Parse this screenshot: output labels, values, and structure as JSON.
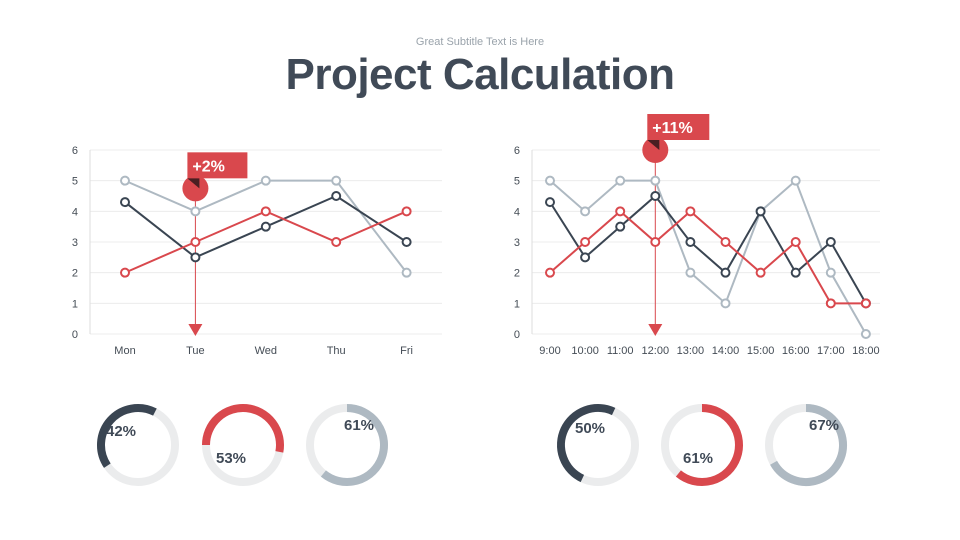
{
  "header": {
    "subtitle": "Great Subtitle Text is Here",
    "title": "Project Calculation"
  },
  "colors": {
    "dark": "#3a4552",
    "red": "#d9484d",
    "gray": "#aeb9c2",
    "track": "#ebeced",
    "grid": "#ececec"
  },
  "chart_data": [
    {
      "type": "line",
      "title": "",
      "categories": [
        "Mon",
        "Tue",
        "Wed",
        "Thu",
        "Fri"
      ],
      "ylim": [
        0,
        6
      ],
      "yticks": [
        "0",
        "1",
        "2",
        "3",
        "4",
        "5",
        "6"
      ],
      "series": [
        {
          "name": "gray",
          "color": "#aeb9c2",
          "values": [
            5,
            4,
            5,
            5,
            2
          ]
        },
        {
          "name": "dark",
          "color": "#3a4552",
          "values": [
            4.3,
            2.5,
            3.5,
            4.5,
            3
          ]
        },
        {
          "name": "red",
          "color": "#d9484d",
          "values": [
            2,
            3,
            4,
            3,
            4
          ]
        }
      ],
      "marker": {
        "category": "Tue",
        "value": 4.75,
        "label": "+2%"
      }
    },
    {
      "type": "line",
      "title": "",
      "categories": [
        "9:00",
        "10:00",
        "11:00",
        "12:00",
        "13:00",
        "14:00",
        "15:00",
        "16:00",
        "17:00",
        "18:00"
      ],
      "ylim": [
        0,
        6
      ],
      "yticks": [
        "0",
        "1",
        "2",
        "3",
        "4",
        "5",
        "6"
      ],
      "series": [
        {
          "name": "gray",
          "color": "#aeb9c2",
          "values": [
            5,
            4,
            5,
            5,
            2,
            1,
            4,
            5,
            2,
            0
          ]
        },
        {
          "name": "dark",
          "color": "#3a4552",
          "values": [
            4.3,
            2.5,
            3.5,
            4.5,
            3,
            2,
            4,
            2,
            3,
            1
          ]
        },
        {
          "name": "red",
          "color": "#d9484d",
          "values": [
            2,
            3,
            4,
            3,
            4,
            3,
            2,
            3,
            1,
            1
          ]
        }
      ],
      "marker": {
        "category": "12:00",
        "value": 6,
        "label": "+11%"
      }
    }
  ],
  "donuts": [
    {
      "value": 42,
      "label": "42%",
      "color": "#3a4552"
    },
    {
      "value": 53,
      "label": "53%",
      "color": "#d9484d"
    },
    {
      "value": 61,
      "label": "61%",
      "color": "#aeb9c2"
    },
    {
      "value": 50,
      "label": "50%",
      "color": "#3a4552"
    },
    {
      "value": 61,
      "label": "61%",
      "color": "#d9484d"
    },
    {
      "value": 67,
      "label": "67%",
      "color": "#aeb9c2"
    }
  ]
}
